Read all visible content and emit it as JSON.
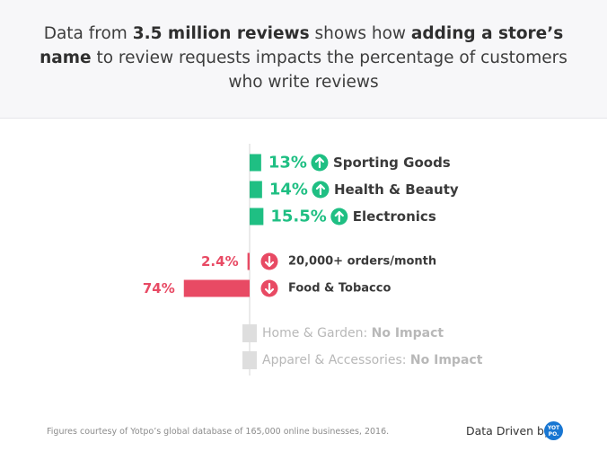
{
  "header": {
    "title_parts": [
      {
        "text": "Data from ",
        "bold": false
      },
      {
        "text": "3.5 million reviews",
        "bold": true
      },
      {
        "text": " shows how ",
        "bold": false
      },
      {
        "text": "adding a store’s name",
        "bold": true
      },
      {
        "text": " to review requests impacts the percentage of customers who write reviews",
        "bold": false
      }
    ]
  },
  "chart_data": {
    "type": "bar",
    "orientation": "horizontal",
    "colors": {
      "increase": "#1fbf83",
      "decrease": "#e84a64",
      "neutral": "#dedede"
    },
    "bars": [
      {
        "label": "Sporting Goods",
        "value": 13,
        "value_label": "13%",
        "direction": "up"
      },
      {
        "label": "Health & Beauty",
        "value": 14,
        "value_label": "14%",
        "direction": "up"
      },
      {
        "label": "Electronics",
        "value": 15.5,
        "value_label": "15.5%",
        "direction": "up"
      },
      {
        "label": "20,000+ orders/month",
        "value": -2.4,
        "value_label": "2.4%",
        "direction": "down"
      },
      {
        "label": "Food & Tobacco",
        "value": -74,
        "value_label": "74%",
        "direction": "down"
      },
      {
        "label": "Home & Garden:",
        "impact": "No Impact",
        "value": 0,
        "direction": "none"
      },
      {
        "label": "Apparel & Accessories:",
        "impact": "No Impact",
        "value": 0,
        "direction": "none"
      }
    ]
  },
  "footer": {
    "note": "Figures courtesy of Yotpo’s global database of 165,000 online businesses, 2016.",
    "brand_text": "Data Driven by",
    "logo_text": "YOT PO."
  }
}
